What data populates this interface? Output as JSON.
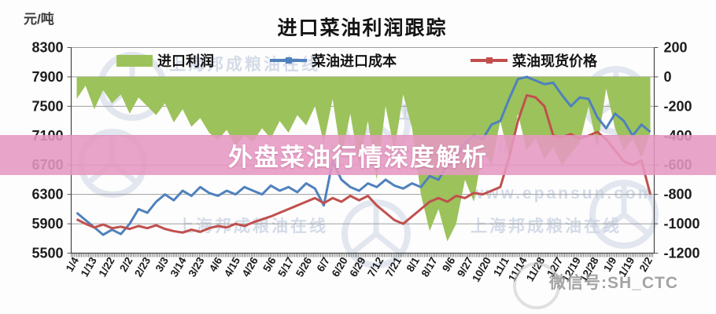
{
  "window": {
    "title": "进口菜油利润跟踪"
  },
  "unit_label": "元/吨",
  "banner": {
    "text": "外盘菜油行情深度解析",
    "color": "#e697c1"
  },
  "legend": [
    {
      "label": "进口利润",
      "type": "area",
      "color": "#9cc25b"
    },
    {
      "label": "菜油进口成本",
      "type": "line",
      "color": "#4f81bd"
    },
    {
      "label": "菜油现货价格",
      "type": "line",
      "color": "#c0504d"
    }
  ],
  "watermarks": {
    "wechat": "微信号:SH_CTC",
    "brand_texts": [
      "上海邦成粮油在线",
      "www.epansun.com",
      "www.epansun.com",
      "上海邦成粮油在线",
      "上海邦成粮油在线",
      "上海邦成粮油在线"
    ]
  },
  "chart_data": {
    "type": "area+line combo",
    "title": "进口菜油利润跟踪",
    "left_axis": {
      "label": "元/吨",
      "min": 5500,
      "max": 8300,
      "ticks": [
        8300,
        7900,
        7500,
        7100,
        6700,
        6300,
        5900,
        5500
      ]
    },
    "right_axis": {
      "min": -1200,
      "max": 200,
      "ticks": [
        200,
        0,
        -200,
        -400,
        -600,
        -800,
        -1000,
        -1200
      ]
    },
    "grid": true,
    "legend_position": "top",
    "x_labels": [
      "1/4",
      "1/13",
      "1/22",
      "2/2",
      "2/23",
      "3/3",
      "3/14",
      "3/23",
      "4/6",
      "4/15",
      "4/26",
      "5/6",
      "5/17",
      "5/26",
      "6/7",
      "6/20",
      "6/29",
      "7/12",
      "7/21",
      "8/1",
      "8/17",
      "9/6",
      "9/27",
      "10/20",
      "11/1",
      "11/14",
      "11/28",
      "12/7",
      "12/19",
      "12/28",
      "1/9",
      "1/19",
      "2/2"
    ],
    "series": [
      {
        "name": "进口利润",
        "type": "area",
        "axis": "right",
        "color": "#9cc25b",
        "baseline": 0,
        "values": [
          -150,
          -60,
          -220,
          -90,
          -180,
          -120,
          -250,
          -140,
          -200,
          -260,
          -180,
          -310,
          -220,
          -340,
          -280,
          -380,
          -430,
          -360,
          -470,
          -400,
          -440,
          -350,
          -420,
          -300,
          -380,
          -260,
          -330,
          -200,
          -450,
          -150,
          -550,
          -250,
          -600,
          -300,
          -700,
          -200,
          -500,
          -120,
          -350,
          -800,
          -1050,
          -900,
          -1120,
          -1000,
          -700,
          -850,
          -500,
          -600,
          -300,
          -550,
          -250,
          -500,
          -420,
          -560,
          -480,
          -600,
          -520,
          -450,
          -200,
          -480,
          -80,
          -350,
          -500,
          -420,
          -550,
          -380
        ]
      },
      {
        "name": "菜油进口成本",
        "type": "line",
        "axis": "left",
        "color": "#4f81bd",
        "values": [
          6050,
          5950,
          5850,
          5750,
          5820,
          5760,
          5900,
          6100,
          6050,
          6200,
          6300,
          6220,
          6350,
          6280,
          6400,
          6320,
          6280,
          6350,
          6300,
          6400,
          6350,
          6300,
          6420,
          6350,
          6400,
          6330,
          6450,
          6380,
          6150,
          6750,
          6500,
          6400,
          6350,
          6450,
          6400,
          6500,
          6420,
          6380,
          6450,
          6400,
          6550,
          6500,
          6700,
          6800,
          7000,
          7100,
          7050,
          7250,
          7300,
          7600,
          7870,
          7900,
          7850,
          7800,
          7820,
          7650,
          7500,
          7620,
          7600,
          7350,
          7200,
          7400,
          7300,
          7100,
          7250,
          7150
        ]
      },
      {
        "name": "菜油现货价格",
        "type": "line",
        "axis": "left",
        "color": "#c0504d",
        "values": [
          5960,
          5900,
          5850,
          5890,
          5840,
          5860,
          5830,
          5870,
          5840,
          5880,
          5830,
          5800,
          5780,
          5820,
          5790,
          5840,
          5870,
          5850,
          5900,
          5870,
          5920,
          5960,
          6000,
          6050,
          6100,
          6150,
          6200,
          6250,
          6180,
          6250,
          6200,
          6280,
          6220,
          6280,
          6150,
          6050,
          5950,
          5900,
          6000,
          6100,
          6200,
          6250,
          6200,
          6280,
          6250,
          6320,
          6300,
          6350,
          6400,
          6800,
          7300,
          7650,
          7620,
          7500,
          7100,
          7080,
          7120,
          7060,
          7100,
          7150,
          7050,
          6900,
          6750,
          6700,
          6760,
          6300
        ]
      }
    ]
  }
}
